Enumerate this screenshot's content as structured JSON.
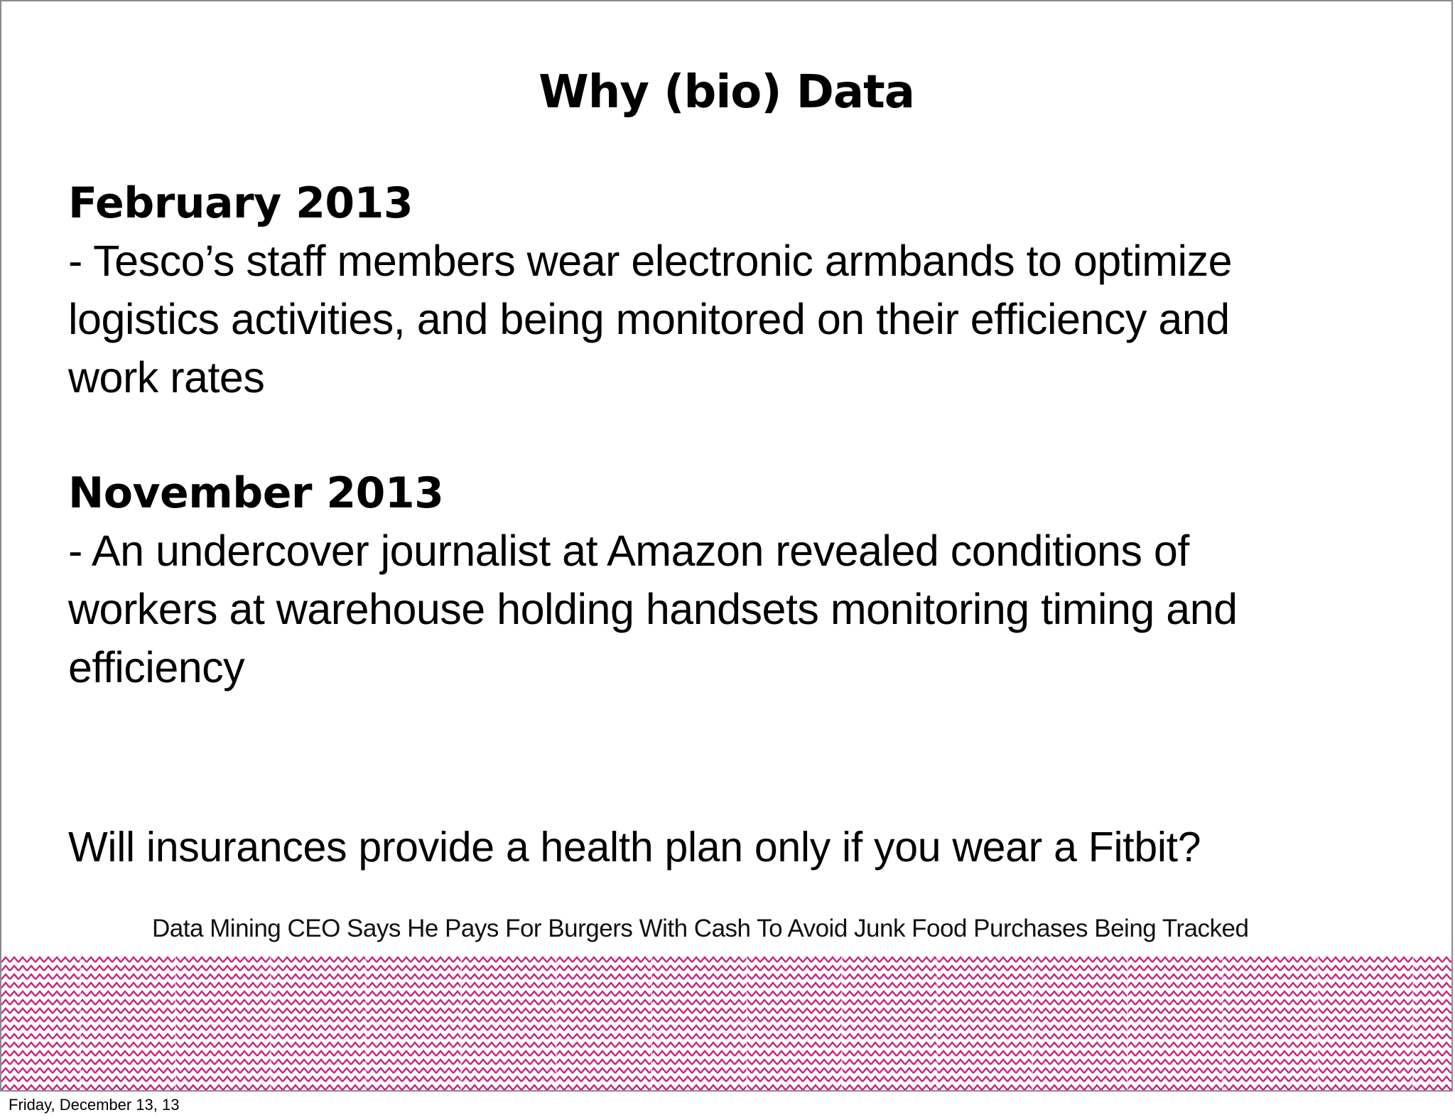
{
  "slide": {
    "title": "Why (bio)  Data",
    "sections": [
      {
        "heading": "February 2013",
        "lines": [
          "- Tesco’s staff members wear electronic armbands to optimize",
          "logistics activities, and being monitored on their efficiency and",
          "work rates"
        ]
      },
      {
        "heading": "November 2013",
        "lines": [
          "- An undercover journalist at Amazon revealed conditions of",
          "workers at warehouse holding handsets monitoring timing and",
          "efficiency"
        ]
      }
    ],
    "question": "Will insurances provide a health plan only if you wear a Fitbit?",
    "caption": "Data Mining CEO Says He Pays For Burgers With Cash To Avoid Junk Food Purchases Being Tracked",
    "pattern_color": "#c8237e"
  },
  "footer": {
    "date": "Friday, December 13, 13"
  }
}
